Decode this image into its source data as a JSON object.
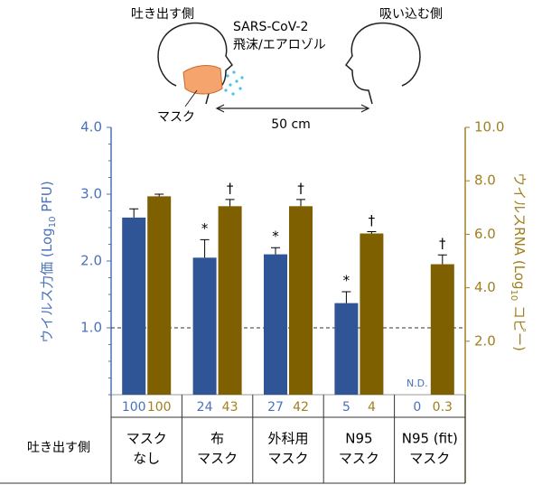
{
  "diagram": {
    "exhale_label": "吐き出す側",
    "virus": "SARS-CoV-2",
    "particles": "飛沫/エアロゾル",
    "inhale_label": "吸い込む側",
    "mask_label": "マスク",
    "distance": "50 cm"
  },
  "chart_data": {
    "type": "bar",
    "y_label": {
      "prefix": "ウイルス力価 (Log",
      "sub": "10",
      "suffix": " PFU)"
    },
    "y2_label": {
      "prefix": "ウイルスRNA (Log",
      "sub": "10",
      "suffix": " コピー)"
    },
    "ylim": [
      0,
      4
    ],
    "yticks": [
      {
        "value": 1,
        "label": "1.0"
      },
      {
        "value": 2,
        "label": "2.0"
      },
      {
        "value": 3,
        "label": "3.0"
      },
      {
        "value": 4,
        "label": "4.0"
      }
    ],
    "y2lim": [
      0,
      10
    ],
    "y2ticks": [
      {
        "value": 2,
        "label": "2.0"
      },
      {
        "value": 4,
        "label": "4.0"
      },
      {
        "value": 6,
        "label": "6.0"
      },
      {
        "value": 8,
        "label": "8.0"
      },
      {
        "value": 10,
        "label": "10.0"
      }
    ],
    "reference_line": 1,
    "series": [
      {
        "color": "#2f5597",
        "values": [
          2.65,
          2.05,
          2.1,
          1.37,
          null
        ],
        "errors": [
          0.13,
          0.27,
          0.1,
          0.17,
          null
        ],
        "markers": [
          null,
          "*",
          "*",
          "*",
          null
        ],
        "na_label": "N.D.",
        "relative": [
          100,
          24,
          27,
          5,
          0
        ]
      },
      {
        "color": "#7f6000",
        "axis": "y2",
        "values": [
          7.42,
          7.05,
          7.05,
          6.03,
          4.88
        ],
        "errors": [
          0.08,
          0.25,
          0.25,
          0.07,
          0.35
        ],
        "markers": [
          null,
          "†",
          "†",
          "†",
          "†"
        ],
        "relative": [
          100,
          43,
          42,
          4,
          0.3
        ]
      }
    ],
    "row_header": "吐き出す側",
    "categories": [
      [
        "マスク",
        "なし"
      ],
      [
        "布",
        "マスク"
      ],
      [
        "外科用",
        "マスク"
      ],
      [
        "N95",
        "マスク"
      ],
      [
        "N95 (fit)",
        "マスク"
      ]
    ]
  }
}
